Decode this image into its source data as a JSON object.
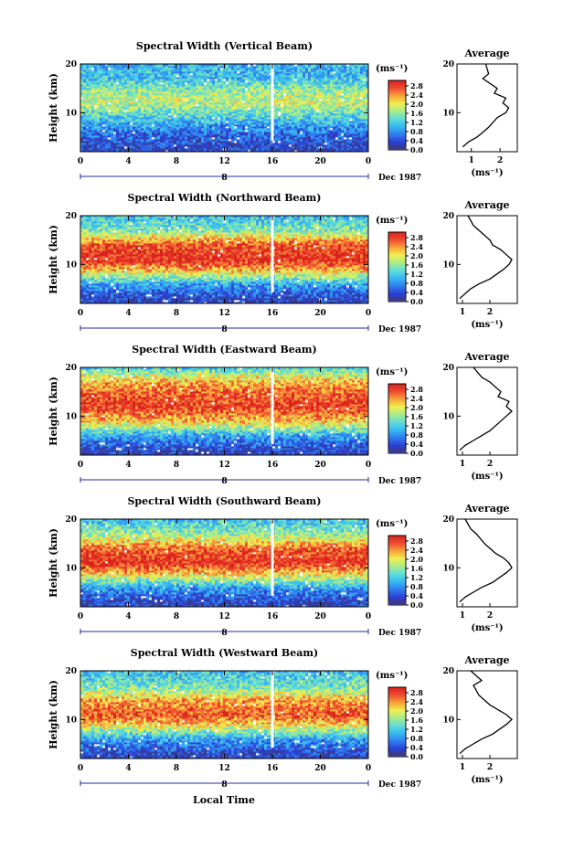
{
  "xlabel": "Local Time",
  "ylabel": "Height (km)",
  "date_label": "Dec 1987",
  "day_label": "8",
  "unit_label": "(ms⁻¹)",
  "average_title": "Average",
  "colorbar_ticks": [
    "2.8",
    "2.4",
    "2.0",
    "1.6",
    "1.2",
    "0.8",
    "0.4",
    "0.0"
  ],
  "colors": {
    "scale": [
      "#3a3a8c",
      "#2b3fd6",
      "#2f7cf0",
      "#35b8f2",
      "#5fdcd8",
      "#a8ec8a",
      "#f2ef4e",
      "#f8a23a",
      "#ef4b32",
      "#d9221c"
    ],
    "gap": "#ffffff"
  },
  "chart_data": [
    {
      "type": "heatmap",
      "title": "Spectral Width (Vertical Beam)",
      "x_ticks": [
        "0",
        "4",
        "8",
        "12",
        "16",
        "20",
        "0"
      ],
      "y_ticks": [
        "20",
        "10"
      ],
      "xlim": [
        0,
        24
      ],
      "ylim": [
        2,
        20
      ],
      "clim": [
        0.0,
        3.0
      ],
      "data_gap_hour": 16,
      "height_profile_km": [
        [
          3,
          0.3
        ],
        [
          6,
          0.6
        ],
        [
          9,
          1.2
        ],
        [
          12,
          1.8
        ],
        [
          14,
          1.7
        ],
        [
          17,
          1.1
        ],
        [
          20,
          1.0
        ]
      ],
      "average": {
        "x_ticks": [
          "1",
          "2"
        ],
        "xlim": [
          0.5,
          2.6
        ],
        "ylim": [
          2,
          20
        ],
        "x": [
          0.7,
          0.9,
          1.2,
          1.4,
          1.6,
          1.9,
          2.2,
          2.3,
          2.1,
          2.2,
          1.8,
          1.9,
          1.4,
          1.6,
          1.5
        ],
        "y": [
          3,
          4,
          5,
          6,
          7,
          9,
          10,
          11,
          12,
          13,
          14,
          15,
          17,
          18,
          20
        ]
      }
    },
    {
      "type": "heatmap",
      "title": "Spectral Width (Northward Beam)",
      "x_ticks": [
        "0",
        "4",
        "8",
        "12",
        "16",
        "20",
        "0"
      ],
      "y_ticks": [
        "20",
        "10"
      ],
      "xlim": [
        0,
        24
      ],
      "ylim": [
        2,
        20
      ],
      "clim": [
        0.0,
        3.0
      ],
      "data_gap_hour": 16,
      "height_profile_km": [
        [
          3,
          0.3
        ],
        [
          6,
          0.9
        ],
        [
          9,
          2.3
        ],
        [
          11,
          2.9
        ],
        [
          14,
          2.7
        ],
        [
          17,
          1.5
        ],
        [
          20,
          1.1
        ]
      ],
      "average": {
        "x_ticks": [
          "1",
          "2"
        ],
        "xlim": [
          0.8,
          3.0
        ],
        "ylim": [
          2,
          20
        ],
        "x": [
          0.9,
          1.1,
          1.3,
          1.6,
          2.0,
          2.5,
          2.7,
          2.8,
          2.6,
          2.4,
          2.1,
          2.0,
          1.6,
          1.4,
          1.2
        ],
        "y": [
          3,
          4,
          5,
          6,
          7,
          9,
          10,
          11,
          12,
          13,
          14,
          15,
          17,
          18,
          20
        ]
      }
    },
    {
      "type": "heatmap",
      "title": "Spectral Width (Eastward Beam)",
      "x_ticks": [
        "0",
        "4",
        "8",
        "12",
        "16",
        "20",
        "0"
      ],
      "y_ticks": [
        "20",
        "10"
      ],
      "xlim": [
        0,
        24
      ],
      "ylim": [
        2,
        20
      ],
      "clim": [
        0.0,
        3.0
      ],
      "data_gap_hour": 16,
      "height_profile_km": [
        [
          3,
          0.3
        ],
        [
          6,
          0.9
        ],
        [
          9,
          2.2
        ],
        [
          12,
          2.8
        ],
        [
          15,
          2.6
        ],
        [
          18,
          2.0
        ],
        [
          20,
          1.2
        ]
      ],
      "average": {
        "x_ticks": [
          "1",
          "2"
        ],
        "xlim": [
          0.8,
          3.0
        ],
        "ylim": [
          2,
          20
        ],
        "x": [
          0.9,
          1.1,
          1.4,
          1.7,
          2.0,
          2.4,
          2.6,
          2.8,
          2.6,
          2.7,
          2.3,
          2.4,
          2.0,
          1.7,
          1.4
        ],
        "y": [
          3,
          4,
          5,
          6,
          7,
          9,
          10,
          11,
          12,
          13,
          14,
          15,
          17,
          18,
          20
        ]
      }
    },
    {
      "type": "heatmap",
      "title": "Spectral Width (Southward Beam)",
      "x_ticks": [
        "0",
        "4",
        "8",
        "12",
        "16",
        "20",
        "0"
      ],
      "y_ticks": [
        "20",
        "10"
      ],
      "xlim": [
        0,
        24
      ],
      "ylim": [
        2,
        20
      ],
      "clim": [
        0.0,
        3.0
      ],
      "data_gap_hour": 16,
      "height_profile_km": [
        [
          3,
          0.3
        ],
        [
          6,
          0.9
        ],
        [
          9,
          2.2
        ],
        [
          11,
          2.9
        ],
        [
          14,
          2.6
        ],
        [
          17,
          1.6
        ],
        [
          20,
          1.1
        ]
      ],
      "average": {
        "x_ticks": [
          "1",
          "2"
        ],
        "xlim": [
          0.8,
          3.0
        ],
        "ylim": [
          2,
          20
        ],
        "x": [
          0.9,
          1.1,
          1.4,
          1.7,
          2.1,
          2.6,
          2.8,
          2.7,
          2.5,
          2.2,
          2.0,
          1.8,
          1.5,
          1.3,
          1.1
        ],
        "y": [
          3,
          4,
          5,
          6,
          7,
          9,
          10,
          11,
          12,
          13,
          14,
          15,
          17,
          18,
          20
        ]
      }
    },
    {
      "type": "heatmap",
      "title": "Spectral Width (Westward Beam)",
      "x_ticks": [
        "0",
        "4",
        "8",
        "12",
        "16",
        "20",
        "0"
      ],
      "y_ticks": [
        "20",
        "10"
      ],
      "xlim": [
        0,
        24
      ],
      "ylim": [
        2,
        20
      ],
      "clim": [
        0.0,
        3.0
      ],
      "data_gap_hour": 16,
      "height_profile_km": [
        [
          3,
          0.3
        ],
        [
          6,
          0.9
        ],
        [
          9,
          2.1
        ],
        [
          11,
          2.7
        ],
        [
          14,
          2.3
        ],
        [
          17,
          1.4
        ],
        [
          20,
          1.1
        ]
      ],
      "average": {
        "x_ticks": [
          "1",
          "2"
        ],
        "xlim": [
          0.8,
          3.0
        ],
        "ylim": [
          2,
          20
        ],
        "x": [
          0.9,
          1.1,
          1.4,
          1.7,
          2.1,
          2.6,
          2.8,
          2.6,
          2.3,
          2.0,
          1.8,
          1.6,
          1.4,
          1.7,
          1.3
        ],
        "y": [
          3,
          4,
          5,
          6,
          7,
          9,
          10,
          11,
          12,
          13,
          14,
          15,
          17,
          18,
          20
        ]
      }
    }
  ]
}
